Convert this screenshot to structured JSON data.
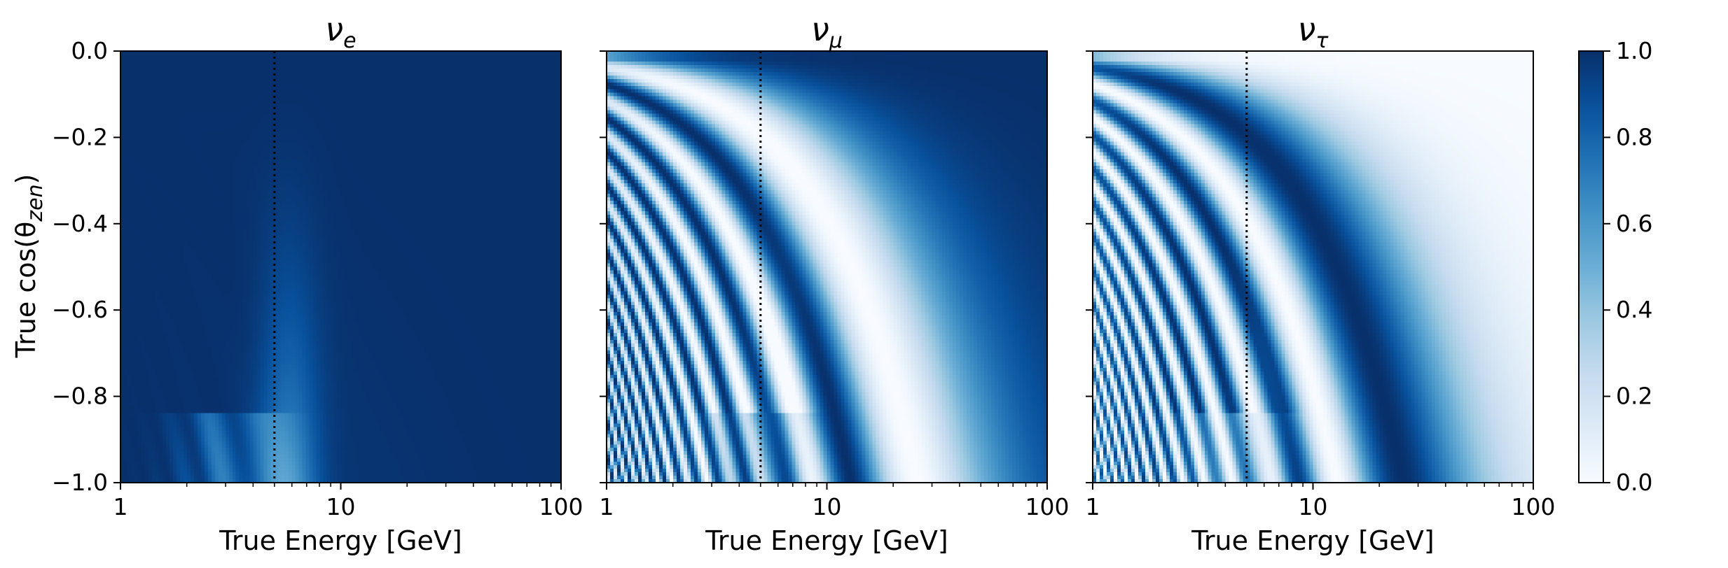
{
  "chart_data": {
    "type": "heatmap",
    "colormap": "Blues",
    "ylabel": "True cos(θ",
    "ylabel_sub": "zen",
    "ylabel_close": ")",
    "y_ticks": [
      0.0,
      -0.2,
      -0.4,
      -0.6,
      -0.8,
      -1.0
    ],
    "y_tick_labels": [
      "0.0",
      "−0.2",
      "−0.4",
      "−0.6",
      "−0.8",
      "−1.0"
    ],
    "x_scale": "log",
    "xlim": [
      1,
      100
    ],
    "ylim": [
      -1.0,
      0.0
    ],
    "x_ticks": [
      1,
      10,
      100
    ],
    "x_tick_labels": [
      "1",
      "10",
      "100"
    ],
    "reference_line_energy_gev": 5,
    "earth_core_boundary_cos": -0.84,
    "panels": [
      {
        "title_main": "ν",
        "title_sub": "e",
        "xlabel": "True Energy [GeV]",
        "flavor": "e"
      },
      {
        "title_main": "ν",
        "title_sub": "μ",
        "xlabel": "True Energy [GeV]",
        "flavor": "mu"
      },
      {
        "title_main": "ν",
        "title_sub": "τ",
        "xlabel": "True Energy [GeV]",
        "flavor": "tau"
      }
    ],
    "colorbar": {
      "range": [
        0.0,
        1.0
      ],
      "ticks": [
        0.0,
        0.2,
        0.4,
        0.6,
        0.8,
        1.0
      ],
      "tick_labels": [
        "0.0",
        "0.2",
        "0.4",
        "0.6",
        "0.8",
        "1.0"
      ],
      "color_low": "#f7fbff",
      "color_high": "#08306b"
    }
  }
}
